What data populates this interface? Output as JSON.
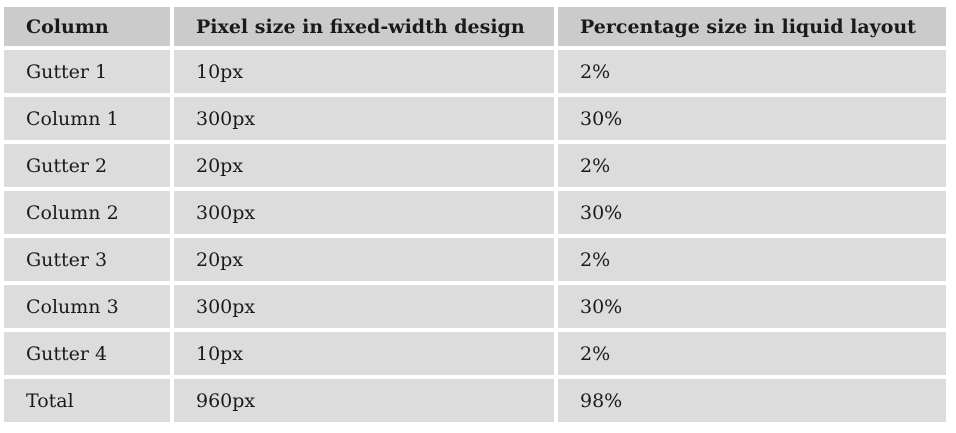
{
  "table": {
    "headers": [
      "Column",
      "Pixel size in fixed-width design",
      "Percentage size in liquid layout"
    ],
    "rows": [
      [
        "Gutter 1",
        "10px",
        "2%"
      ],
      [
        "Column 1",
        "300px",
        "30%"
      ],
      [
        "Gutter 2",
        "20px",
        "2%"
      ],
      [
        "Column 2",
        "300px",
        "30%"
      ],
      [
        "Gutter 3",
        "20px",
        "2%"
      ],
      [
        "Column 3",
        "300px",
        "30%"
      ],
      [
        "Gutter 4",
        "10px",
        "2%"
      ],
      [
        "Total",
        "960px",
        "98%"
      ]
    ]
  },
  "colors": {
    "header_background": "#cbcbcb",
    "cell_background": "#dcdcdc",
    "text": "#1a1a1a"
  }
}
